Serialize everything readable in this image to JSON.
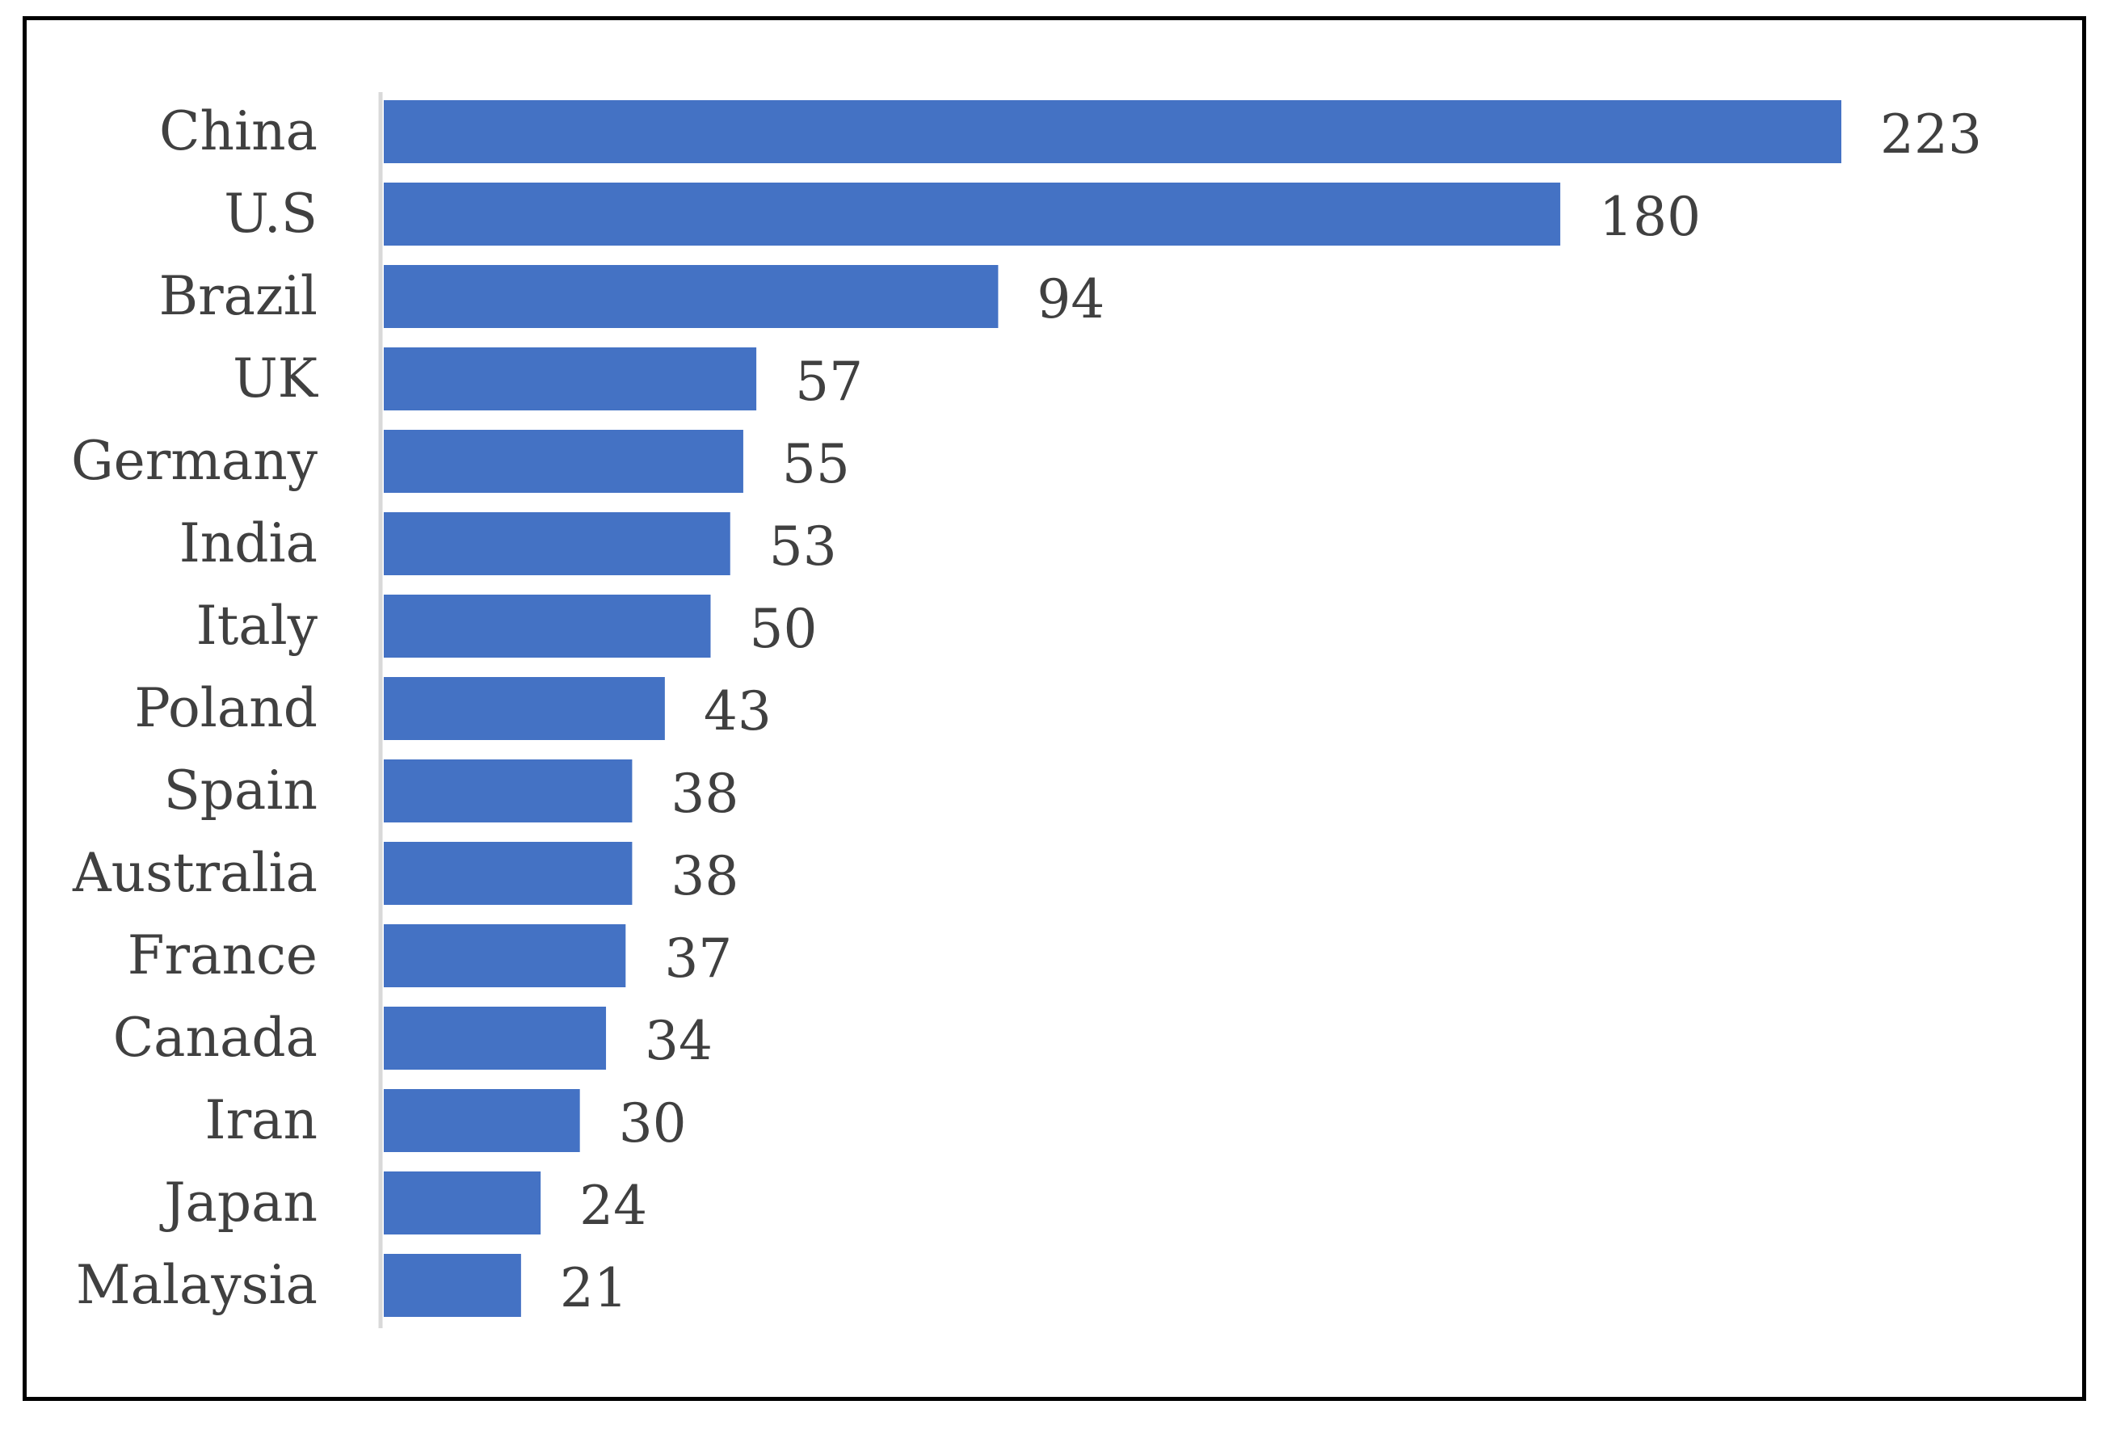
{
  "chart_data": {
    "type": "bar",
    "orientation": "horizontal",
    "categories": [
      "China",
      "U.S",
      "Brazil",
      "UK",
      "Germany",
      "India",
      "Italy",
      "Poland",
      "Spain",
      "Australia",
      "France",
      "Canada",
      "Iran",
      "Japan",
      "Malaysia"
    ],
    "values": [
      223,
      180,
      94,
      57,
      55,
      53,
      50,
      43,
      38,
      38,
      37,
      34,
      30,
      24,
      21
    ],
    "title": "",
    "xlabel": "",
    "ylabel": "",
    "xlim": [
      0,
      223
    ],
    "grid": false,
    "legend": "none",
    "data_labels": true,
    "colors": {
      "bar": "#4472C4",
      "text": "#404040",
      "axis": "#D9D9D9",
      "frame": "#000000"
    }
  }
}
